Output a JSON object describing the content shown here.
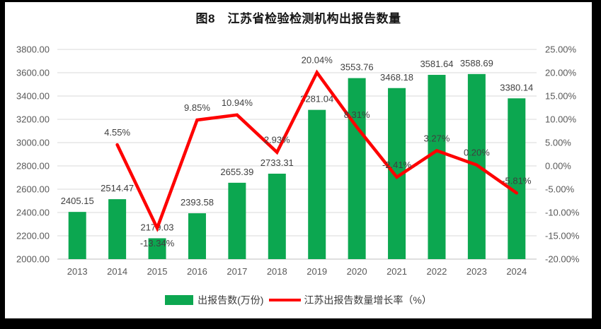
{
  "title": "图8　江苏省检验检测机构出报告数量",
  "colors": {
    "frame_bg": "#000000",
    "panel_bg": "#FFFFFF",
    "bar": "#0CA750",
    "line": "#FE0000",
    "grid": "#D9D9D9",
    "axis_line": "#BFBFBF",
    "tick_text": "#595959",
    "label_text": "#3F3F3F",
    "title_text": "#151515"
  },
  "chart_data": {
    "type": "bar+line",
    "title": "图8　江苏省检验检测机构出报告数量",
    "categories": [
      "2013",
      "2014",
      "2015",
      "2016",
      "2017",
      "2018",
      "2019",
      "2020",
      "2021",
      "2022",
      "2023",
      "2024"
    ],
    "series": [
      {
        "name": "出报告数(万份)",
        "type": "bar",
        "axis": "left",
        "color": "#0CA750",
        "values": [
          2405.15,
          2514.47,
          2179.03,
          2393.58,
          2655.39,
          2733.31,
          3281.04,
          3553.76,
          3468.18,
          3581.64,
          3588.69,
          3380.14
        ],
        "labels": [
          "2405.15",
          "2514.47",
          "2179.03",
          "2393.58",
          "2655.39",
          "2733.31",
          "3281.04",
          "3553.76",
          "3468.18",
          "3581.64",
          "3588.69",
          "3380.14"
        ]
      },
      {
        "name": "江苏出报告数量增长率（%）",
        "type": "line",
        "axis": "right",
        "color": "#FE0000",
        "values": [
          null,
          4.55,
          -13.34,
          9.85,
          10.94,
          2.93,
          20.04,
          8.31,
          -2.41,
          3.27,
          0.2,
          -5.81
        ],
        "labels": [
          null,
          "4.55%",
          "-13.34%",
          "9.85%",
          "10.94%",
          "2.93%",
          "20.04%",
          "8.31%",
          "-2.41%",
          "3.27%",
          "0.20%",
          "-5.81%"
        ]
      }
    ],
    "left_axis": {
      "min": 2000,
      "max": 3800,
      "step": 200,
      "tick_labels": [
        "3800.00",
        "3600.00",
        "3400.00",
        "3200.00",
        "3000.00",
        "2800.00",
        "2600.00",
        "2400.00",
        "2200.00",
        "2000.00"
      ]
    },
    "right_axis": {
      "min": -20,
      "max": 25,
      "step": 5,
      "tick_labels": [
        "25.00%",
        "20.00%",
        "15.00%",
        "10.00%",
        "5.00%",
        "0.00%",
        "-5.00%",
        "-10.00%",
        "-15.00%",
        "-20.00%"
      ]
    },
    "grid": true,
    "legend_position": "bottom"
  }
}
